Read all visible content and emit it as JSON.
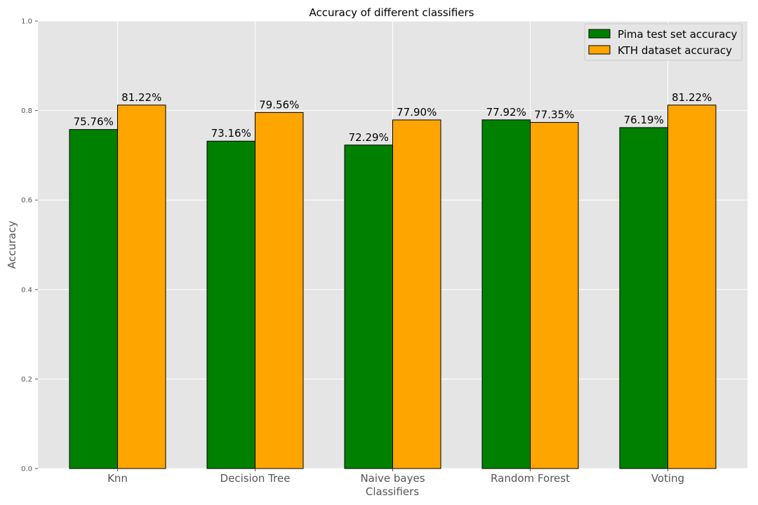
{
  "chart_data": {
    "type": "bar",
    "title": "Accuracy of different classifiers",
    "xlabel": "Classifiers",
    "ylabel": "Accuracy",
    "ylim": [
      0,
      1.0
    ],
    "yticks": [
      0.0,
      0.2,
      0.4,
      0.6,
      0.8,
      1.0
    ],
    "ytick_labels": [
      "0.0",
      "0.2",
      "0.4",
      "0.6",
      "0.8",
      "1.0"
    ],
    "grid": true,
    "legend_position": "top-right",
    "categories": [
      "Knn",
      "Decision Tree",
      "Naive bayes",
      "Random Forest",
      "Voting"
    ],
    "series": [
      {
        "name": "Pima test set accuracy",
        "color": "#008000",
        "values": [
          0.7576,
          0.7316,
          0.7229,
          0.7792,
          0.7619
        ],
        "labels": [
          "75.76%",
          "73.16%",
          "72.29%",
          "77.92%",
          "76.19%"
        ]
      },
      {
        "name": "KTH dataset accuracy",
        "color": "#FFA500",
        "values": [
          0.8122,
          0.7956,
          0.779,
          0.7735,
          0.8122
        ],
        "labels": [
          "81.22%",
          "79.56%",
          "77.90%",
          "77.35%",
          "81.22%"
        ]
      }
    ],
    "background_color": "#E5E5E5",
    "grid_color": "#FFFFFF"
  }
}
